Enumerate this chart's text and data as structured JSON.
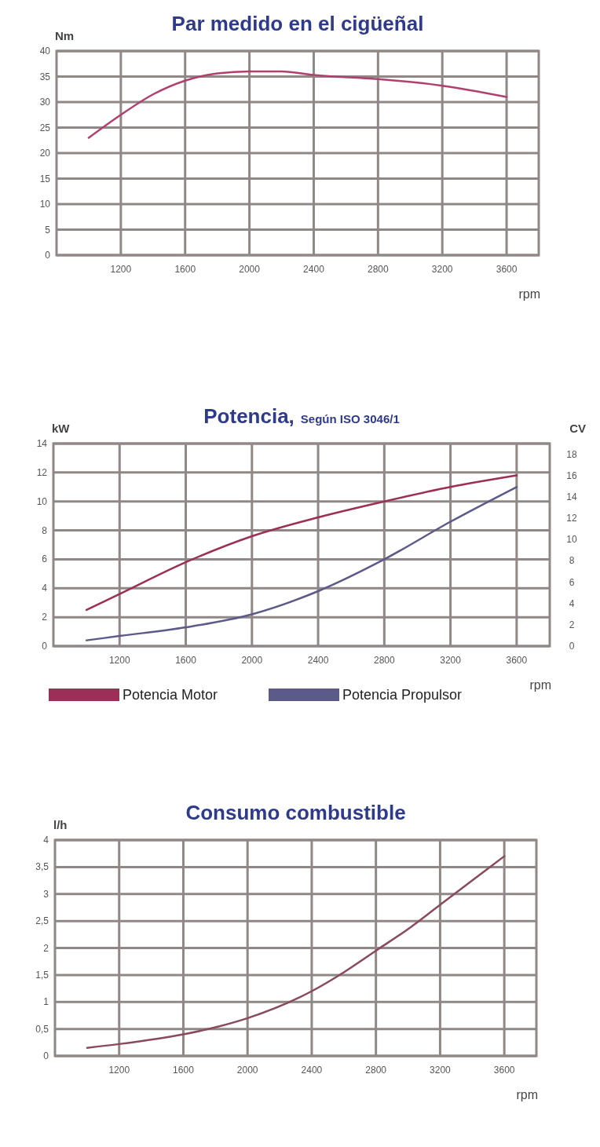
{
  "chart_data": [
    {
      "type": "line",
      "title": "Par medido en el cigüeñal",
      "ylabel": "Nm",
      "xlabel": "rpm",
      "x": [
        1000,
        1200,
        1400,
        1600,
        1800,
        2000,
        2200,
        2400,
        2800,
        3200,
        3600
      ],
      "series": [
        {
          "color": "#b0406e",
          "values": [
            23,
            27.5,
            31.5,
            34.2,
            35.6,
            36,
            36,
            35.3,
            34.5,
            33.2,
            31
          ]
        }
      ],
      "xlim": [
        800,
        3800
      ],
      "xticks": [
        1200,
        1600,
        2000,
        2400,
        2800,
        3200,
        3600
      ],
      "ylim": [
        0,
        40
      ],
      "yticks": [
        0,
        5,
        10,
        15,
        20,
        25,
        30,
        35,
        40
      ],
      "grid": true,
      "legend": false
    },
    {
      "type": "line",
      "title": "Potencia,",
      "subtitle": "Según ISO 3046/1",
      "ylabel": "kW",
      "y2label": "CV",
      "xlabel": "rpm",
      "x": [
        1000,
        1200,
        1600,
        2000,
        2400,
        2800,
        3200,
        3600
      ],
      "series": [
        {
          "name": "Potencia Motor",
          "color": "#9c2f55",
          "values": [
            2.5,
            3.6,
            5.8,
            7.6,
            8.9,
            10,
            11,
            11.8
          ]
        },
        {
          "name": "Potencia Propulsor",
          "color": "#5c5a88",
          "values": [
            0.4,
            0.7,
            1.3,
            2.2,
            3.8,
            6,
            8.6,
            11
          ]
        }
      ],
      "xlim": [
        800,
        3800
      ],
      "xticks": [
        1200,
        1600,
        2000,
        2400,
        2800,
        3200,
        3600
      ],
      "ylim": [
        0,
        14
      ],
      "yticks": [
        0,
        2,
        4,
        6,
        8,
        10,
        12,
        14
      ],
      "y2lim": [
        0,
        19
      ],
      "y2ticks": [
        0,
        2,
        4,
        6,
        8,
        10,
        12,
        14,
        16,
        18
      ],
      "grid": true,
      "legend": "bottom"
    },
    {
      "type": "line",
      "title": "Consumo combustible",
      "ylabel": "l/h",
      "xlabel": "rpm",
      "x": [
        1000,
        1200,
        1600,
        1800,
        2000,
        2400,
        2600,
        2800,
        3000,
        3200,
        3400,
        3600
      ],
      "series": [
        {
          "color": "#8a4a5e",
          "values": [
            0.15,
            0.22,
            0.4,
            0.53,
            0.7,
            1.2,
            1.55,
            1.95,
            2.35,
            2.8,
            3.25,
            3.7
          ]
        }
      ],
      "xlim": [
        800,
        3800
      ],
      "xticks": [
        1200,
        1600,
        2000,
        2400,
        2800,
        3200,
        3600
      ],
      "ylim": [
        0,
        4
      ],
      "yticks": [
        0,
        {
          "value": 0.5,
          "label": "0,5"
        },
        1,
        {
          "value": 1.5,
          "label": "1,5"
        },
        2,
        {
          "value": 2.5,
          "label": "2,5"
        },
        3,
        {
          "value": 3.5,
          "label": "3,5"
        },
        4
      ],
      "grid": true,
      "legend": false
    }
  ]
}
